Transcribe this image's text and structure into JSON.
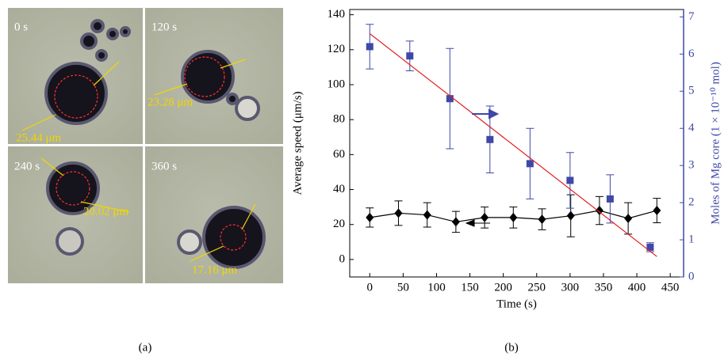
{
  "micrographs": [
    {
      "time": "0 s",
      "diameter": "25.44 μm"
    },
    {
      "time": "120 s",
      "diameter": "23.28 μm"
    },
    {
      "time": "240 s",
      "diameter": "20.02 μm"
    },
    {
      "time": "360 s",
      "diameter": "17.16 μm"
    }
  ],
  "panel_labels": [
    "(a)",
    "(b)"
  ],
  "chart_data": {
    "type": "scatter",
    "xlabel": "Time (s)",
    "ylabel": "Average speed (μm/s)",
    "y2label": "Moles of Mg core (1 × 10⁻¹⁰ mol)",
    "xlim": [
      -30,
      470
    ],
    "xticks": [
      0,
      50,
      100,
      150,
      200,
      250,
      300,
      350,
      400,
      450
    ],
    "ylim": [
      -10,
      143
    ],
    "yticks": [
      0,
      20,
      40,
      60,
      80,
      100,
      120,
      140
    ],
    "y2lim": [
      0,
      7.2
    ],
    "y2ticks": [
      0,
      1,
      2,
      3,
      4,
      5,
      6,
      7
    ],
    "series": [
      {
        "color": "#000000",
        "marker": "diamond",
        "connect": true,
        "x": [
          0,
          43,
          86,
          129,
          172,
          215,
          258,
          301,
          344,
          387,
          430
        ],
        "values": [
          24,
          26.5,
          25.5,
          21.5,
          24,
          24,
          23,
          25,
          28,
          23.5,
          28
        ],
        "errors": [
          5.5,
          7,
          7,
          6,
          6,
          6,
          6,
          12,
          8,
          9,
          7
        ]
      },
      {
        "color": "#3f48a8",
        "marker": "square",
        "connect": false,
        "axis": "y2",
        "x": [
          0,
          60,
          120,
          180,
          240,
          300,
          360,
          420
        ],
        "values": [
          6.2,
          5.95,
          4.8,
          3.7,
          3.05,
          2.6,
          2.1,
          0.8
        ],
        "errors": [
          0.6,
          0.4,
          1.35,
          0.9,
          0.95,
          0.75,
          0.65,
          0.12
        ]
      },
      {
        "color": "#e02020",
        "marker": "none",
        "connect": true,
        "axis": "y2",
        "x": [
          0,
          430
        ],
        "values": [
          6.55,
          0.55
        ]
      }
    ]
  }
}
